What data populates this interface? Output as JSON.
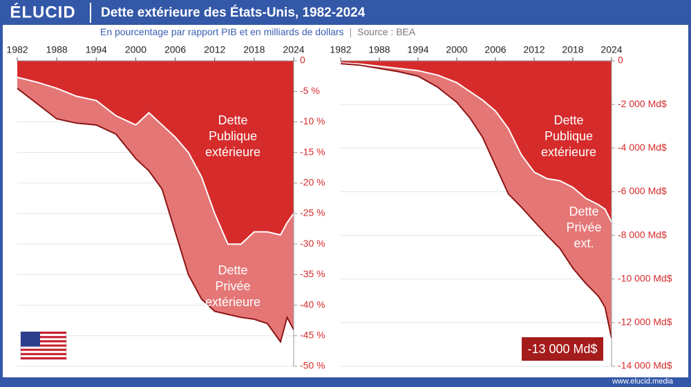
{
  "header": {
    "logo": "ÉLUCID",
    "title": "Dette extérieure des États-Unis, 1982-2024",
    "subtitle": "En pourcentage par rapport PIB et en milliards de dollars",
    "source": "Source : BEA"
  },
  "chart_data": [
    {
      "type": "area",
      "stacked": true,
      "x": [
        1982,
        1985,
        1988,
        1991,
        1994,
        1997,
        2000,
        2002,
        2004,
        2006,
        2008,
        2010,
        2012,
        2014,
        2016,
        2018,
        2020,
        2022,
        2023,
        2024
      ],
      "series": [
        {
          "name": "Dette Publique extérieure",
          "color": "#d62b2b",
          "values": [
            -2.7,
            -3.5,
            -4.5,
            -5.8,
            -6.5,
            -9,
            -10.5,
            -8.5,
            -10.5,
            -12.5,
            -15,
            -19,
            -25,
            -30,
            -30,
            -28,
            -28,
            -28.5,
            -26.5,
            -25
          ]
        },
        {
          "name": "Dette Privée extérieure",
          "color": "#e57676",
          "values": [
            -1.8,
            -3.5,
            -5,
            -4.4,
            -4,
            -3,
            -5.5,
            -9.5,
            -10.5,
            -15.5,
            -20,
            -20,
            -16,
            -11.5,
            -12,
            -14.3,
            -15,
            -17.5,
            -15.5,
            -19
          ]
        }
      ],
      "xlim": [
        1982,
        2024
      ],
      "xticks": [
        1982,
        1988,
        1994,
        2000,
        2006,
        2012,
        2018,
        2024
      ],
      "ylim": [
        -50,
        0
      ],
      "yticks": [
        0,
        {
          "value": -5,
          "label": "-5 %"
        },
        {
          "value": -10,
          "label": "-10 %"
        },
        {
          "value": -15,
          "label": "-15 %"
        },
        {
          "value": -20,
          "label": "-20 %"
        },
        {
          "value": -25,
          "label": "-25 %"
        },
        {
          "value": -30,
          "label": "-30 %"
        },
        {
          "value": -35,
          "label": "-35 %"
        },
        {
          "value": -40,
          "label": "-40 %"
        },
        {
          "value": -45,
          "label": "-45 %"
        },
        {
          "value": -50,
          "label": "-50 %"
        }
      ],
      "grid": true,
      "annotations": [
        [
          "Dette",
          "Publique",
          "extérieure"
        ],
        [
          "Dette",
          "Privée",
          "extérieure"
        ]
      ]
    },
    {
      "type": "area",
      "stacked": true,
      "x": [
        1982,
        1985,
        1988,
        1991,
        1994,
        1997,
        2000,
        2002,
        2004,
        2006,
        2008,
        2010,
        2012,
        2014,
        2016,
        2018,
        2020,
        2022,
        2023,
        2024
      ],
      "series": [
        {
          "name": "Dette Publique extérieure",
          "color": "#d62b2b",
          "values": [
            -100,
            -150,
            -250,
            -350,
            -450,
            -650,
            -1000,
            -1400,
            -1800,
            -2300,
            -3100,
            -4300,
            -5100,
            -5400,
            -5500,
            -5800,
            -6300,
            -6600,
            -6800,
            -7400
          ]
        },
        {
          "name": "Dette Privée ext.",
          "color": "#e57676",
          "values": [
            -30,
            -50,
            -100,
            -150,
            -250,
            -550,
            -900,
            -1200,
            -1700,
            -2500,
            -3000,
            -2400,
            -2250,
            -2600,
            -3100,
            -3700,
            -3900,
            -4200,
            -4500,
            -5300
          ]
        }
      ],
      "xlim": [
        1982,
        2024
      ],
      "xticks": [
        1982,
        1988,
        1994,
        2000,
        2006,
        2012,
        2018,
        2024
      ],
      "ylim": [
        -14000,
        0
      ],
      "yticks": [
        0,
        {
          "value": -2000,
          "label": "-2 000 Md$"
        },
        {
          "value": -4000,
          "label": "-4 000 Md$"
        },
        {
          "value": -6000,
          "label": "-6 000 Md$"
        },
        {
          "value": -8000,
          "label": "-8 000 Md$"
        },
        {
          "value": -10000,
          "label": "-10 000 Md$"
        },
        {
          "value": -12000,
          "label": "-12 000 Md$"
        },
        {
          "value": -14000,
          "label": "-14 000 Md$"
        }
      ],
      "grid": true,
      "annotations": [
        [
          "Dette",
          "Publique",
          "extérieure"
        ],
        [
          "Dette",
          "Privée",
          "ext."
        ]
      ],
      "callout": "-13 000 Md$"
    }
  ],
  "footer": "www.elucid.media"
}
